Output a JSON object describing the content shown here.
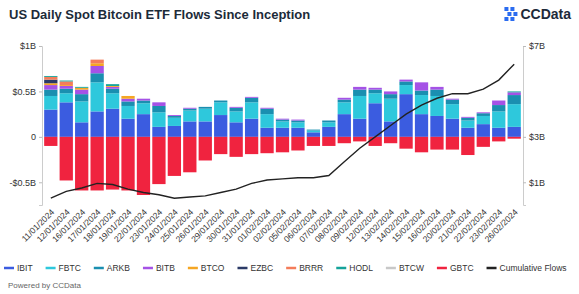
{
  "chart_data": {
    "type": "bar",
    "title": "US Daily Spot Bitcoin ETF Flows Since Inception",
    "annotations": [
      "CCData",
      "Powered by CCData"
    ],
    "stacked": true,
    "grid": false,
    "legend": "bottom",
    "categories": [
      "11/01/2024",
      "12/01/2024",
      "16/01/2024",
      "17/01/2024",
      "18/01/2024",
      "19/01/2024",
      "22/01/2024",
      "23/01/2024",
      "24/01/2024",
      "25/01/2024",
      "26/01/2024",
      "29/01/2024",
      "30/01/2024",
      "31/01/2024",
      "01/02/2024",
      "02/02/2024",
      "05/02/2024",
      "06/02/2024",
      "07/02/2024",
      "08/02/2024",
      "09/02/2024",
      "12/02/2024",
      "13/02/2024",
      "14/02/2024",
      "15/02/2024",
      "16/02/2024",
      "20/02/2024",
      "21/02/2024",
      "22/02/2024",
      "23/02/2024",
      "26/02/2024"
    ],
    "ylim": [
      -0.75,
      1
    ],
    "yticks": [
      {
        "value": -0.5,
        "label": "-$0.5B"
      },
      0,
      {
        "value": 0.5,
        "label": "$0.5B"
      },
      {
        "value": 1,
        "label": "$1B"
      }
    ],
    "y2lim": [
      0,
      7
    ],
    "y2ticks": [
      {
        "value": 1,
        "label": "$1B"
      },
      {
        "value": 3,
        "label": "$3B"
      },
      {
        "value": 7,
        "label": "$7B"
      }
    ],
    "series": [
      {
        "name": "IBIT",
        "type": "bar",
        "color": "#3b5ce0",
        "values": [
          0.3,
          0.38,
          0.16,
          0.28,
          0.31,
          0.2,
          0.25,
          0.11,
          0.12,
          0.17,
          0.17,
          0.24,
          0.16,
          0.2,
          0.1,
          0.1,
          0.1,
          0.05,
          0.11,
          0.25,
          0.2,
          0.37,
          0.17,
          0.47,
          0.25,
          0.23,
          0.2,
          0.1,
          0.14,
          0.1,
          0.11
        ]
      },
      {
        "name": "FBTC",
        "type": "bar",
        "color": "#2ec8dc",
        "values": [
          0.15,
          0.1,
          0.23,
          0.32,
          0.17,
          0.14,
          0.12,
          0.16,
          0.09,
          0.12,
          0.14,
          0.14,
          0.12,
          0.18,
          0.15,
          0.07,
          0.06,
          0.02,
          0.05,
          0.13,
          0.25,
          0.11,
          0.25,
          0.1,
          0.21,
          0.22,
          0.16,
          0.08,
          0.09,
          0.18,
          0.25
        ]
      },
      {
        "name": "ARKB",
        "type": "bar",
        "color": "#1a8fb0",
        "values": [
          0.07,
          0.05,
          0.08,
          0.1,
          0.05,
          0.05,
          0.03,
          0.07,
          0.02,
          0.02,
          0.02,
          0.02,
          0.04,
          0.05,
          0.06,
          0.02,
          0.02,
          0.01,
          0.02,
          0.03,
          0.07,
          0.04,
          0.05,
          0.04,
          0.05,
          0.07,
          0.05,
          0.03,
          0.03,
          0.07,
          0.1
        ]
      },
      {
        "name": "BITB",
        "type": "bar",
        "color": "#a552e6",
        "values": [
          0.05,
          0.03,
          0.05,
          0.08,
          0.02,
          0.03,
          0.02,
          0.04,
          0.01,
          0.01,
          0,
          0,
          0.01,
          0.01,
          0.01,
          0.01,
          0.01,
          0,
          0,
          0.02,
          0.03,
          0.02,
          0.03,
          0.02,
          0.09,
          0.03,
          0.01,
          0.01,
          0.01,
          0.05,
          0.03
        ]
      },
      {
        "name": "BTCO",
        "type": "bar",
        "color": "#f5a623",
        "values": [
          0.02,
          0.01,
          0.02,
          0.03,
          0.01,
          0.03,
          0,
          0,
          0,
          0,
          0,
          0,
          0,
          0,
          0,
          0,
          0,
          0,
          0,
          0,
          0,
          0,
          0,
          0,
          0,
          0,
          0,
          0,
          0,
          0,
          0
        ]
      },
      {
        "name": "EZBC",
        "type": "bar",
        "color": "#2b3a67",
        "values": [
          0.04,
          0,
          0,
          0,
          0,
          0,
          0,
          0,
          0,
          0,
          0,
          0,
          0,
          0,
          0,
          0,
          0,
          0,
          0,
          0,
          0,
          0,
          0,
          0,
          0,
          0,
          0,
          0,
          0,
          0,
          0
        ]
      },
      {
        "name": "BRRR",
        "type": "bar",
        "color": "#f47c5a",
        "values": [
          0.03,
          0.04,
          0,
          0.04,
          0,
          0,
          0,
          0,
          0,
          0,
          0,
          0,
          0,
          0,
          0,
          0,
          0,
          0,
          0,
          0,
          0,
          0,
          0,
          0,
          0,
          0,
          0,
          0,
          0,
          0,
          0
        ]
      },
      {
        "name": "HODL",
        "type": "bar",
        "color": "#14a39a",
        "values": [
          0.01,
          0.01,
          0.01,
          0,
          0.02,
          0,
          0,
          0,
          0,
          0,
          0,
          0,
          0,
          0,
          0,
          0,
          0,
          0,
          0,
          0,
          0,
          0,
          0,
          0,
          0,
          0,
          0,
          0,
          0,
          0,
          0.01
        ]
      },
      {
        "name": "BTCW",
        "type": "bar",
        "color": "#c8c8c8",
        "values": [
          0,
          0,
          0,
          0,
          0,
          0,
          0,
          0,
          0,
          0,
          0,
          0,
          0,
          0,
          0,
          0,
          0,
          0,
          0,
          0,
          0,
          0,
          0,
          0,
          0,
          0,
          0,
          0,
          0,
          0,
          0
        ]
      },
      {
        "name": "GBTC",
        "type": "bar",
        "color": "#f0233f",
        "values": [
          -0.1,
          -0.48,
          -0.59,
          -0.59,
          -0.58,
          -0.59,
          -0.64,
          -0.52,
          -0.43,
          -0.39,
          -0.26,
          -0.19,
          -0.22,
          -0.19,
          -0.18,
          -0.17,
          -0.15,
          -0.1,
          -0.1,
          -0.07,
          -0.05,
          -0.1,
          -0.07,
          -0.13,
          -0.17,
          -0.14,
          -0.14,
          -0.2,
          -0.11,
          -0.05,
          -0.02
        ]
      },
      {
        "name": "Cumulative Flows",
        "type": "line",
        "axis": "y2",
        "color": "#222222",
        "values": [
          0.3,
          0.6,
          0.75,
          0.95,
          0.9,
          0.7,
          0.55,
          0.45,
          0.3,
          0.35,
          0.4,
          0.55,
          0.7,
          0.95,
          1.1,
          1.15,
          1.2,
          1.2,
          1.3,
          1.9,
          2.5,
          3.0,
          3.5,
          4.0,
          4.4,
          4.7,
          4.9,
          4.9,
          5.1,
          5.5,
          6.2
        ]
      }
    ]
  }
}
